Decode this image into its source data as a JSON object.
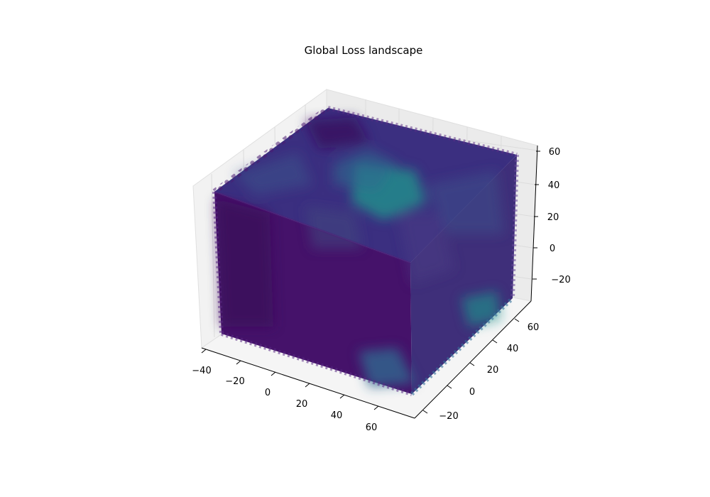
{
  "chart_data": {
    "type": "scatter",
    "projection": "3d",
    "title": "Global Loss landscape",
    "xlabel": "",
    "ylabel": "",
    "zlabel": "",
    "x_ticks": [
      "−40",
      "−20",
      "0",
      "20",
      "40",
      "60"
    ],
    "y_ticks": [
      "−20",
      "0",
      "20",
      "40",
      "60"
    ],
    "z_ticks": [
      "−20",
      "0",
      "20",
      "40",
      "60"
    ],
    "xlim": [
      -40,
      70
    ],
    "ylim": [
      -30,
      70
    ],
    "zlim": [
      -30,
      65
    ],
    "cube_extent": {
      "x": [
        -38,
        68
      ],
      "y": [
        -28,
        68
      ],
      "z": [
        -30,
        60
      ]
    },
    "colormap": "viridis",
    "grid": true,
    "colors": {
      "dominant": "#45126a",
      "mid": "#3b528b",
      "high": "#21918c",
      "pane": "#f2f2f2",
      "grid": "#e6e6e6"
    }
  }
}
